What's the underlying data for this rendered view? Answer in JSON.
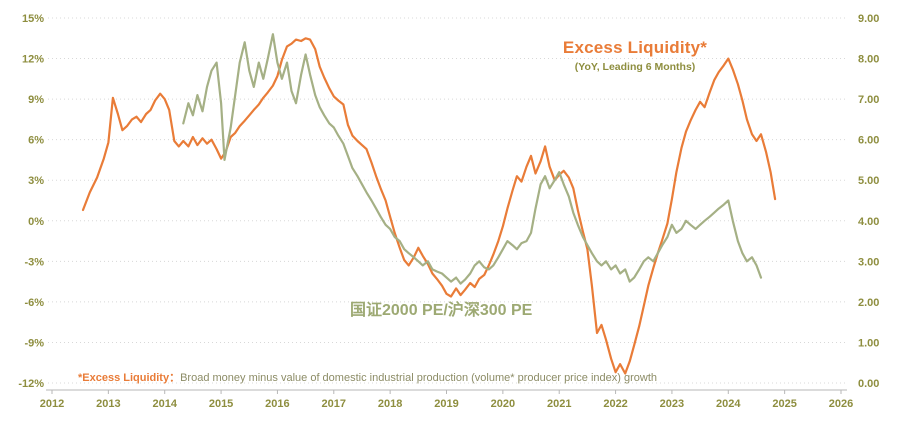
{
  "chart_data": {
    "type": "line",
    "title": "Excess Liquidity*",
    "subtitle": "(YoY, Leading 6 Months)",
    "series_label": "国证2000 PE/沪深300 PE",
    "footnote_term": "*Excess Liquidity：",
    "footnote_rest": "Broad money minus value of domestic industrial production (volume* producer price index) growth",
    "colors": {
      "excess_liquidity": "#E97C38",
      "pe_ratio": "#A5B085",
      "pe_label": "#9DA973",
      "axis_text": "#8E8E3F",
      "grid": "#D8D8D8",
      "axis_line": "#B7B7B7",
      "footnote_text": "#8C8C66",
      "background": "#FFFFFF"
    },
    "x_axis": {
      "min": 2012,
      "max": 2026,
      "tick_values": [
        2012,
        2013,
        2014,
        2015,
        2016,
        2017,
        2018,
        2019,
        2020,
        2021,
        2022,
        2023,
        2024,
        2025,
        2026
      ],
      "tick_labels": [
        "2012",
        "2013",
        "2014",
        "2015",
        "2016",
        "2017",
        "2018",
        "2019",
        "2020",
        "2021",
        "2022",
        "2023",
        "2024",
        "2025",
        "2026"
      ]
    },
    "left_axis": {
      "min": -12,
      "max": 15,
      "tick_values": [
        15,
        12,
        9,
        6,
        3,
        0,
        -3,
        -6,
        -9,
        -12
      ],
      "tick_labels": [
        "15%",
        "12%",
        "9%",
        "6%",
        "3%",
        "0%",
        "-3%",
        "-6%",
        "-9%",
        "-12%"
      ]
    },
    "right_axis": {
      "min": 0,
      "max": 9,
      "tick_values": [
        9,
        8,
        7,
        6,
        5,
        4,
        3,
        2,
        1,
        0
      ],
      "tick_labels": [
        "9.00",
        "8.00",
        "7.00",
        "6.00",
        "5.00",
        "4.00",
        "3.00",
        "2.00",
        "1.00",
        "0.00"
      ]
    },
    "grid": "horizontal-dotted",
    "legend_position": "none",
    "series": [
      {
        "name": "Excess Liquidity* (YoY, Leading 6 Months)",
        "axis": "left",
        "color_key": "excess_liquidity",
        "points": [
          [
            2012.55,
            0.8
          ],
          [
            2012.67,
            2.1
          ],
          [
            2012.8,
            3.2
          ],
          [
            2012.92,
            4.6
          ],
          [
            2013.0,
            5.8
          ],
          [
            2013.08,
            9.1
          ],
          [
            2013.17,
            7.9
          ],
          [
            2013.25,
            6.7
          ],
          [
            2013.33,
            7.0
          ],
          [
            2013.42,
            7.5
          ],
          [
            2013.5,
            7.7
          ],
          [
            2013.58,
            7.3
          ],
          [
            2013.67,
            7.9
          ],
          [
            2013.75,
            8.2
          ],
          [
            2013.83,
            8.9
          ],
          [
            2013.92,
            9.4
          ],
          [
            2014.0,
            9.0
          ],
          [
            2014.08,
            8.2
          ],
          [
            2014.17,
            5.9
          ],
          [
            2014.25,
            5.5
          ],
          [
            2014.33,
            5.9
          ],
          [
            2014.42,
            5.5
          ],
          [
            2014.5,
            6.2
          ],
          [
            2014.58,
            5.6
          ],
          [
            2014.67,
            6.1
          ],
          [
            2014.75,
            5.7
          ],
          [
            2014.83,
            6.0
          ],
          [
            2014.92,
            5.3
          ],
          [
            2015.0,
            4.6
          ],
          [
            2015.08,
            5.1
          ],
          [
            2015.17,
            6.2
          ],
          [
            2015.25,
            6.5
          ],
          [
            2015.33,
            7.0
          ],
          [
            2015.42,
            7.4
          ],
          [
            2015.5,
            7.8
          ],
          [
            2015.58,
            8.2
          ],
          [
            2015.67,
            8.6
          ],
          [
            2015.75,
            9.1
          ],
          [
            2015.83,
            9.5
          ],
          [
            2015.92,
            10.0
          ],
          [
            2016.0,
            10.7
          ],
          [
            2016.08,
            11.9
          ],
          [
            2016.17,
            12.9
          ],
          [
            2016.25,
            13.1
          ],
          [
            2016.33,
            13.4
          ],
          [
            2016.42,
            13.3
          ],
          [
            2016.5,
            13.5
          ],
          [
            2016.58,
            13.4
          ],
          [
            2016.67,
            12.7
          ],
          [
            2016.75,
            11.4
          ],
          [
            2016.83,
            10.6
          ],
          [
            2016.92,
            9.8
          ],
          [
            2017.0,
            9.2
          ],
          [
            2017.08,
            8.9
          ],
          [
            2017.17,
            8.6
          ],
          [
            2017.25,
            7.1
          ],
          [
            2017.33,
            6.3
          ],
          [
            2017.42,
            5.9
          ],
          [
            2017.5,
            5.6
          ],
          [
            2017.58,
            5.3
          ],
          [
            2017.67,
            4.3
          ],
          [
            2017.75,
            3.3
          ],
          [
            2017.83,
            2.4
          ],
          [
            2017.92,
            1.5
          ],
          [
            2018.0,
            0.3
          ],
          [
            2018.08,
            -0.9
          ],
          [
            2018.17,
            -2.0
          ],
          [
            2018.25,
            -2.9
          ],
          [
            2018.33,
            -3.3
          ],
          [
            2018.42,
            -2.7
          ],
          [
            2018.5,
            -2.0
          ],
          [
            2018.58,
            -2.6
          ],
          [
            2018.67,
            -3.2
          ],
          [
            2018.75,
            -3.9
          ],
          [
            2018.83,
            -4.3
          ],
          [
            2018.92,
            -4.8
          ],
          [
            2019.0,
            -5.4
          ],
          [
            2019.08,
            -5.6
          ],
          [
            2019.17,
            -5.0
          ],
          [
            2019.25,
            -5.5
          ],
          [
            2019.33,
            -5.1
          ],
          [
            2019.42,
            -4.6
          ],
          [
            2019.5,
            -4.9
          ],
          [
            2019.58,
            -4.3
          ],
          [
            2019.67,
            -4.0
          ],
          [
            2019.75,
            -3.3
          ],
          [
            2019.83,
            -2.5
          ],
          [
            2019.92,
            -1.5
          ],
          [
            2020.0,
            -0.4
          ],
          [
            2020.08,
            0.9
          ],
          [
            2020.17,
            2.2
          ],
          [
            2020.25,
            3.3
          ],
          [
            2020.33,
            2.9
          ],
          [
            2020.42,
            4.0
          ],
          [
            2020.5,
            4.8
          ],
          [
            2020.58,
            3.5
          ],
          [
            2020.67,
            4.4
          ],
          [
            2020.75,
            5.5
          ],
          [
            2020.83,
            4.0
          ],
          [
            2020.92,
            3.0
          ],
          [
            2021.0,
            3.4
          ],
          [
            2021.08,
            3.7
          ],
          [
            2021.17,
            3.2
          ],
          [
            2021.25,
            2.4
          ],
          [
            2021.33,
            0.8
          ],
          [
            2021.42,
            -0.8
          ],
          [
            2021.5,
            -2.1
          ],
          [
            2021.58,
            -4.8
          ],
          [
            2021.67,
            -8.3
          ],
          [
            2021.75,
            -7.7
          ],
          [
            2021.83,
            -8.8
          ],
          [
            2021.92,
            -10.2
          ],
          [
            2022.0,
            -11.2
          ],
          [
            2022.08,
            -10.6
          ],
          [
            2022.17,
            -11.3
          ],
          [
            2022.25,
            -10.4
          ],
          [
            2022.33,
            -9.2
          ],
          [
            2022.42,
            -7.8
          ],
          [
            2022.5,
            -6.3
          ],
          [
            2022.58,
            -4.8
          ],
          [
            2022.67,
            -3.5
          ],
          [
            2022.75,
            -2.4
          ],
          [
            2022.83,
            -1.4
          ],
          [
            2022.92,
            -0.2
          ],
          [
            2023.0,
            1.6
          ],
          [
            2023.08,
            3.6
          ],
          [
            2023.17,
            5.4
          ],
          [
            2023.25,
            6.6
          ],
          [
            2023.33,
            7.4
          ],
          [
            2023.42,
            8.2
          ],
          [
            2023.5,
            8.8
          ],
          [
            2023.58,
            8.4
          ],
          [
            2023.67,
            9.5
          ],
          [
            2023.75,
            10.4
          ],
          [
            2023.83,
            11.0
          ],
          [
            2023.92,
            11.5
          ],
          [
            2024.0,
            12.0
          ],
          [
            2024.08,
            11.2
          ],
          [
            2024.17,
            10.1
          ],
          [
            2024.25,
            8.9
          ],
          [
            2024.33,
            7.5
          ],
          [
            2024.42,
            6.4
          ],
          [
            2024.5,
            5.9
          ],
          [
            2024.58,
            6.4
          ],
          [
            2024.67,
            5.1
          ],
          [
            2024.75,
            3.6
          ],
          [
            2024.83,
            1.6
          ]
        ]
      },
      {
        "name": "国证2000 PE/沪深300 PE",
        "axis": "right",
        "color_key": "pe_ratio",
        "points": [
          [
            2014.33,
            6.4
          ],
          [
            2014.42,
            6.9
          ],
          [
            2014.5,
            6.6
          ],
          [
            2014.58,
            7.1
          ],
          [
            2014.67,
            6.7
          ],
          [
            2014.75,
            7.3
          ],
          [
            2014.83,
            7.7
          ],
          [
            2014.92,
            7.9
          ],
          [
            2015.0,
            6.9
          ],
          [
            2015.06,
            5.5
          ],
          [
            2015.17,
            6.3
          ],
          [
            2015.25,
            7.1
          ],
          [
            2015.33,
            7.9
          ],
          [
            2015.42,
            8.4
          ],
          [
            2015.5,
            7.7
          ],
          [
            2015.58,
            7.3
          ],
          [
            2015.67,
            7.9
          ],
          [
            2015.75,
            7.5
          ],
          [
            2015.83,
            8.0
          ],
          [
            2015.92,
            8.6
          ],
          [
            2016.0,
            7.9
          ],
          [
            2016.08,
            7.5
          ],
          [
            2016.17,
            7.9
          ],
          [
            2016.25,
            7.2
          ],
          [
            2016.33,
            6.9
          ],
          [
            2016.42,
            7.6
          ],
          [
            2016.5,
            8.1
          ],
          [
            2016.58,
            7.6
          ],
          [
            2016.67,
            7.1
          ],
          [
            2016.75,
            6.8
          ],
          [
            2016.83,
            6.6
          ],
          [
            2016.92,
            6.4
          ],
          [
            2017.0,
            6.3
          ],
          [
            2017.08,
            6.1
          ],
          [
            2017.17,
            5.9
          ],
          [
            2017.25,
            5.6
          ],
          [
            2017.33,
            5.3
          ],
          [
            2017.42,
            5.1
          ],
          [
            2017.5,
            4.9
          ],
          [
            2017.58,
            4.7
          ],
          [
            2017.67,
            4.5
          ],
          [
            2017.75,
            4.3
          ],
          [
            2017.83,
            4.1
          ],
          [
            2017.92,
            3.9
          ],
          [
            2018.0,
            3.8
          ],
          [
            2018.08,
            3.6
          ],
          [
            2018.17,
            3.5
          ],
          [
            2018.25,
            3.3
          ],
          [
            2018.33,
            3.2
          ],
          [
            2018.42,
            3.1
          ],
          [
            2018.5,
            3.0
          ],
          [
            2018.58,
            2.9
          ],
          [
            2018.67,
            3.0
          ],
          [
            2018.75,
            2.8
          ],
          [
            2018.83,
            2.75
          ],
          [
            2018.92,
            2.7
          ],
          [
            2019.0,
            2.6
          ],
          [
            2019.08,
            2.5
          ],
          [
            2019.17,
            2.6
          ],
          [
            2019.25,
            2.45
          ],
          [
            2019.33,
            2.55
          ],
          [
            2019.42,
            2.7
          ],
          [
            2019.5,
            2.9
          ],
          [
            2019.58,
            3.0
          ],
          [
            2019.67,
            2.85
          ],
          [
            2019.75,
            2.8
          ],
          [
            2019.83,
            2.9
          ],
          [
            2019.92,
            3.1
          ],
          [
            2020.0,
            3.3
          ],
          [
            2020.08,
            3.5
          ],
          [
            2020.17,
            3.4
          ],
          [
            2020.25,
            3.3
          ],
          [
            2020.33,
            3.45
          ],
          [
            2020.42,
            3.5
          ],
          [
            2020.5,
            3.7
          ],
          [
            2020.58,
            4.3
          ],
          [
            2020.67,
            4.9
          ],
          [
            2020.75,
            5.1
          ],
          [
            2020.83,
            4.8
          ],
          [
            2020.92,
            5.0
          ],
          [
            2021.0,
            5.2
          ],
          [
            2021.08,
            4.9
          ],
          [
            2021.17,
            4.6
          ],
          [
            2021.25,
            4.2
          ],
          [
            2021.33,
            3.9
          ],
          [
            2021.42,
            3.6
          ],
          [
            2021.5,
            3.4
          ],
          [
            2021.58,
            3.2
          ],
          [
            2021.67,
            3.0
          ],
          [
            2021.75,
            2.9
          ],
          [
            2021.83,
            3.0
          ],
          [
            2021.92,
            2.8
          ],
          [
            2022.0,
            2.9
          ],
          [
            2022.08,
            2.7
          ],
          [
            2022.17,
            2.8
          ],
          [
            2022.25,
            2.5
          ],
          [
            2022.33,
            2.6
          ],
          [
            2022.42,
            2.8
          ],
          [
            2022.5,
            3.0
          ],
          [
            2022.58,
            3.1
          ],
          [
            2022.67,
            3.0
          ],
          [
            2022.75,
            3.2
          ],
          [
            2022.83,
            3.4
          ],
          [
            2022.92,
            3.6
          ],
          [
            2023.0,
            3.9
          ],
          [
            2023.08,
            3.7
          ],
          [
            2023.17,
            3.8
          ],
          [
            2023.25,
            4.0
          ],
          [
            2023.33,
            3.9
          ],
          [
            2023.42,
            3.8
          ],
          [
            2023.5,
            3.9
          ],
          [
            2023.58,
            4.0
          ],
          [
            2023.67,
            4.1
          ],
          [
            2023.75,
            4.2
          ],
          [
            2023.83,
            4.3
          ],
          [
            2023.92,
            4.4
          ],
          [
            2024.0,
            4.5
          ],
          [
            2024.08,
            4.0
          ],
          [
            2024.17,
            3.5
          ],
          [
            2024.25,
            3.2
          ],
          [
            2024.33,
            3.0
          ],
          [
            2024.42,
            3.1
          ],
          [
            2024.5,
            2.9
          ],
          [
            2024.58,
            2.6
          ]
        ]
      }
    ]
  }
}
